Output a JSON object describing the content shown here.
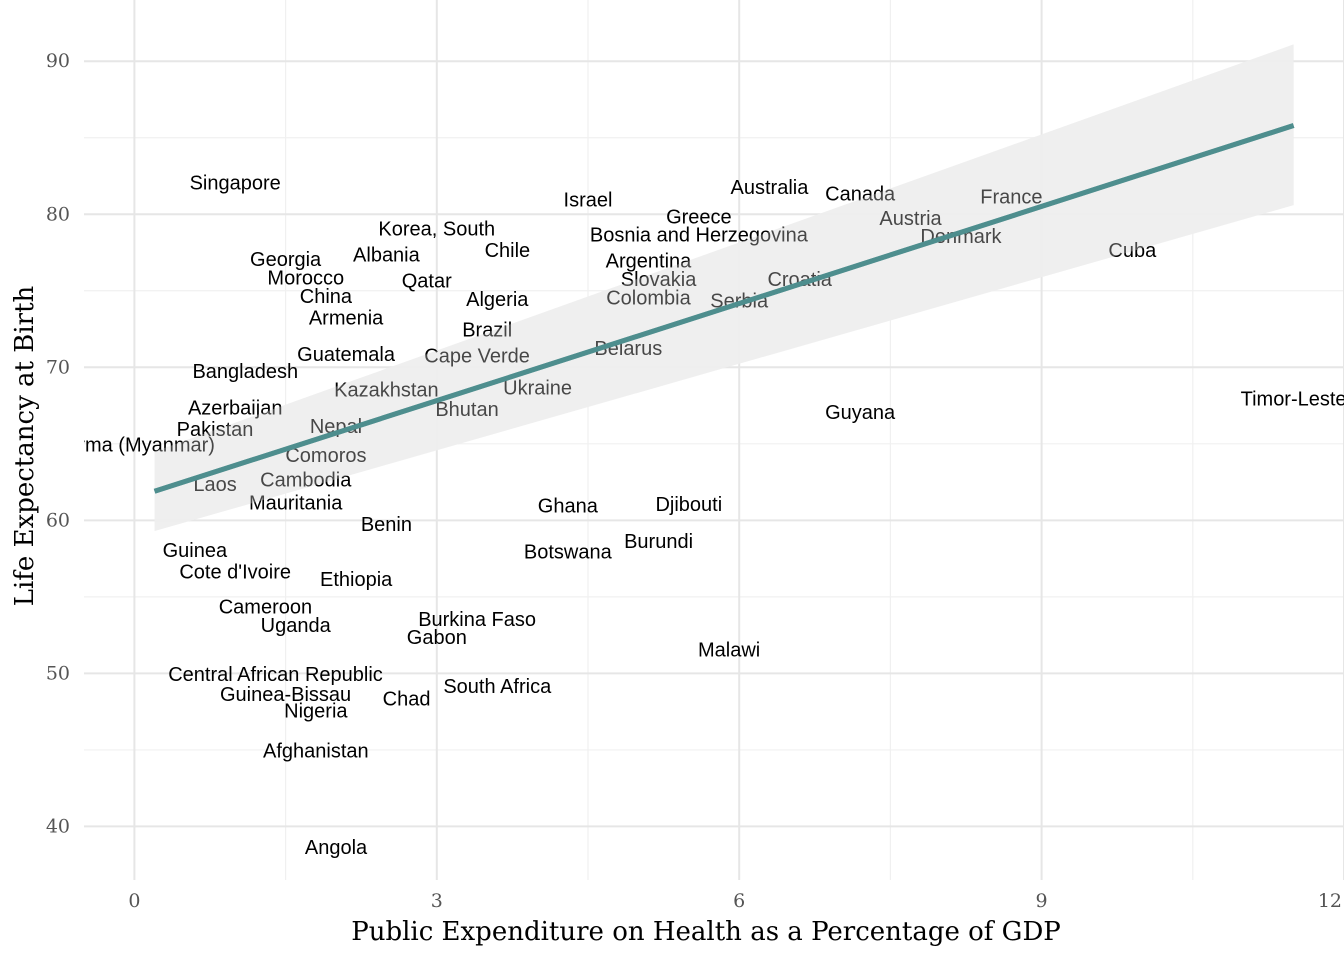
{
  "chart_data": {
    "type": "scatter",
    "title": "",
    "xlabel": "Public Expenditure on Health as a Percentage of GDP",
    "ylabel": "Life Expectancy at Birth",
    "xlim": [
      -0.5,
      12
    ],
    "ylim": [
      36.5,
      94
    ],
    "x_ticks": [
      0,
      3,
      6,
      9,
      12
    ],
    "x_tick_labels": [
      "0",
      "3",
      "6",
      "9",
      "12"
    ],
    "y_ticks": [
      40,
      50,
      60,
      70,
      80,
      90
    ],
    "y_tick_labels": [
      "40",
      "50",
      "60",
      "70",
      "80",
      "90"
    ],
    "grid": true,
    "point_style": "country name text labels",
    "colors": {
      "fit_line": "#4e8e8e",
      "confidence_band": "#e8e8e8",
      "label": "#000000"
    },
    "fit": {
      "method": "linear",
      "x": [
        0.2,
        11.5
      ],
      "y": [
        61.9,
        85.8
      ],
      "ci_lower": [
        59.3,
        80.6
      ],
      "ci_upper": [
        64.5,
        91.1
      ]
    },
    "points": [
      {
        "label": "Singapore",
        "x": 1.0,
        "y": 82.0
      },
      {
        "label": "Israel",
        "x": 4.5,
        "y": 80.9
      },
      {
        "label": "Australia",
        "x": 6.3,
        "y": 81.7
      },
      {
        "label": "Canada",
        "x": 7.2,
        "y": 81.3
      },
      {
        "label": "France",
        "x": 8.7,
        "y": 81.1
      },
      {
        "label": "Greece",
        "x": 5.6,
        "y": 79.8
      },
      {
        "label": "Austria",
        "x": 7.7,
        "y": 79.7
      },
      {
        "label": "Denmark",
        "x": 8.2,
        "y": 78.5
      },
      {
        "label": "Korea, South",
        "x": 3.0,
        "y": 79.0
      },
      {
        "label": "Bosnia and Herzegovina",
        "x": 5.6,
        "y": 78.6
      },
      {
        "label": "Georgia",
        "x": 1.5,
        "y": 77.0
      },
      {
        "label": "Albania",
        "x": 2.5,
        "y": 77.3
      },
      {
        "label": "Chile",
        "x": 3.7,
        "y": 77.6
      },
      {
        "label": "Cuba",
        "x": 9.9,
        "y": 77.6
      },
      {
        "label": "Morocco",
        "x": 1.7,
        "y": 75.8
      },
      {
        "label": "Argentina",
        "x": 5.1,
        "y": 76.9
      },
      {
        "label": "Qatar",
        "x": 2.9,
        "y": 75.6
      },
      {
        "label": "Slovakia",
        "x": 5.2,
        "y": 75.7
      },
      {
        "label": "Croatia",
        "x": 6.6,
        "y": 75.7
      },
      {
        "label": "China",
        "x": 1.9,
        "y": 74.6
      },
      {
        "label": "Algeria",
        "x": 3.6,
        "y": 74.4
      },
      {
        "label": "Colombia",
        "x": 5.1,
        "y": 74.5
      },
      {
        "label": "Serbia",
        "x": 6.0,
        "y": 74.3
      },
      {
        "label": "Armenia",
        "x": 2.1,
        "y": 73.2
      },
      {
        "label": "Brazil",
        "x": 3.5,
        "y": 72.4
      },
      {
        "label": "Belarus",
        "x": 4.9,
        "y": 71.2
      },
      {
        "label": "Guatemala",
        "x": 2.1,
        "y": 70.8
      },
      {
        "label": "Cape Verde",
        "x": 3.4,
        "y": 70.7
      },
      {
        "label": "Bangladesh",
        "x": 1.1,
        "y": 69.7
      },
      {
        "label": "Kazakhstan",
        "x": 2.5,
        "y": 68.5
      },
      {
        "label": "Ukraine",
        "x": 4.0,
        "y": 68.6
      },
      {
        "label": "Timor-Leste",
        "x": 11.5,
        "y": 67.9
      },
      {
        "label": "Azerbaijan",
        "x": 1.0,
        "y": 67.3
      },
      {
        "label": "Bhutan",
        "x": 3.3,
        "y": 67.2
      },
      {
        "label": "Guyana",
        "x": 7.2,
        "y": 67.0
      },
      {
        "label": "Nepal",
        "x": 2.0,
        "y": 66.1
      },
      {
        "label": "Pakistan",
        "x": 0.8,
        "y": 65.9
      },
      {
        "label": "Burma (Myanmar)",
        "x": 0.0,
        "y": 64.9
      },
      {
        "label": "Comoros",
        "x": 1.9,
        "y": 64.2
      },
      {
        "label": "Cambodia",
        "x": 1.7,
        "y": 62.6
      },
      {
        "label": "Laos",
        "x": 0.8,
        "y": 62.3
      },
      {
        "label": "Mauritania",
        "x": 1.6,
        "y": 61.1
      },
      {
        "label": "Ghana",
        "x": 4.3,
        "y": 60.9
      },
      {
        "label": "Djibouti",
        "x": 5.5,
        "y": 61.0
      },
      {
        "label": "Benin",
        "x": 2.5,
        "y": 59.7
      },
      {
        "label": "Burundi",
        "x": 5.2,
        "y": 58.6
      },
      {
        "label": "Guinea",
        "x": 0.6,
        "y": 58.0
      },
      {
        "label": "Botswana",
        "x": 4.3,
        "y": 57.9
      },
      {
        "label": "Cote d'Ivoire",
        "x": 1.0,
        "y": 56.6
      },
      {
        "label": "Ethiopia",
        "x": 2.2,
        "y": 56.1
      },
      {
        "label": "Cameroon",
        "x": 1.3,
        "y": 54.3
      },
      {
        "label": "Burkina Faso",
        "x": 3.4,
        "y": 53.5
      },
      {
        "label": "Uganda",
        "x": 1.6,
        "y": 53.1
      },
      {
        "label": "Gabon",
        "x": 3.0,
        "y": 52.3
      },
      {
        "label": "Malawi",
        "x": 5.9,
        "y": 51.5
      },
      {
        "label": "Central African Republic",
        "x": 1.4,
        "y": 49.9
      },
      {
        "label": "South Africa",
        "x": 3.6,
        "y": 49.1
      },
      {
        "label": "Guinea-Bissau",
        "x": 1.5,
        "y": 48.6
      },
      {
        "label": "Chad",
        "x": 2.7,
        "y": 48.3
      },
      {
        "label": "Nigeria",
        "x": 1.8,
        "y": 47.5
      },
      {
        "label": "Afghanistan",
        "x": 1.8,
        "y": 44.9
      },
      {
        "label": "Angola",
        "x": 2.0,
        "y": 38.6
      }
    ]
  }
}
